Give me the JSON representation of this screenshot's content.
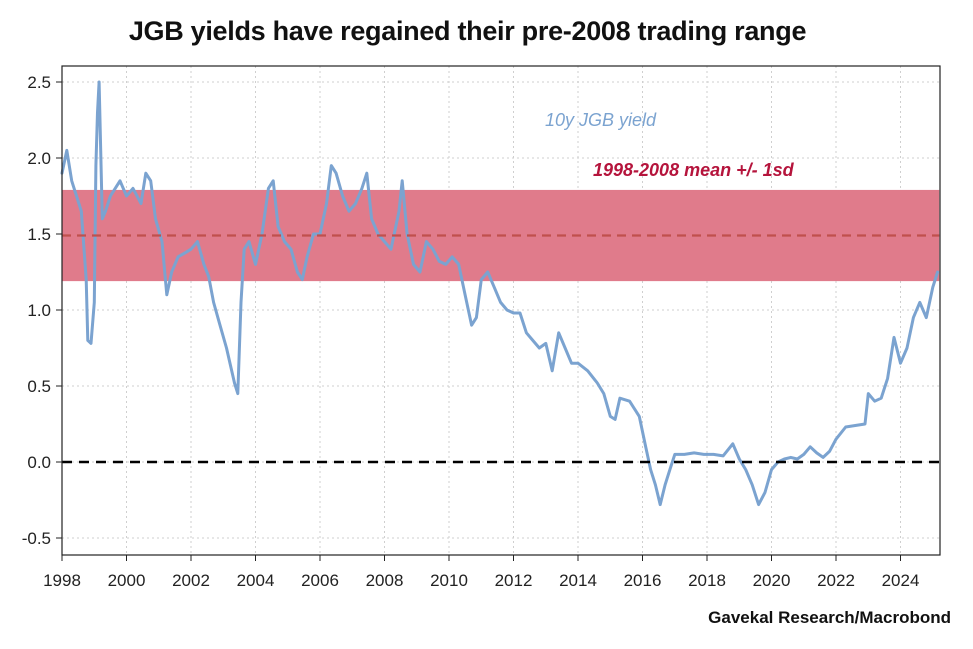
{
  "chart_data": {
    "type": "line",
    "title": "JGB yields have regained their pre-2008 trading range",
    "source": "Gavekal Research/Macrobond",
    "xlim": [
      1998,
      2025.4
    ],
    "ylim": [
      -0.6,
      2.6
    ],
    "x_ticks": [
      1998,
      2000,
      2002,
      2004,
      2006,
      2008,
      2010,
      2012,
      2014,
      2016,
      2018,
      2020,
      2022,
      2024
    ],
    "y_ticks": [
      -0.5,
      0.0,
      0.5,
      1.0,
      1.5,
      2.0,
      2.5
    ],
    "y_tick_labels": [
      "-0.5",
      "0.0",
      "0.5",
      "1.0",
      "1.5",
      "2.0",
      "2.5"
    ],
    "band": {
      "label": "1998-2008 mean +/- 1sd",
      "mean": 1.49,
      "low": 1.19,
      "high": 1.79,
      "x_start": 1998,
      "x_end": 2025.2,
      "color": "#e07b8b",
      "line_color": "#c0504d"
    },
    "zero_line": 0.0,
    "series": [
      {
        "name": "10y JGB yield",
        "color": "#7ba3d0",
        "points": [
          [
            1998.0,
            1.9
          ],
          [
            1998.15,
            2.05
          ],
          [
            1998.3,
            1.85
          ],
          [
            1998.45,
            1.75
          ],
          [
            1998.6,
            1.65
          ],
          [
            1998.75,
            1.2
          ],
          [
            1998.8,
            0.8
          ],
          [
            1998.9,
            0.78
          ],
          [
            1999.0,
            1.05
          ],
          [
            1999.05,
            1.95
          ],
          [
            1999.1,
            2.3
          ],
          [
            1999.15,
            2.5
          ],
          [
            1999.25,
            1.6
          ],
          [
            1999.35,
            1.65
          ],
          [
            1999.5,
            1.75
          ],
          [
            1999.65,
            1.8
          ],
          [
            1999.8,
            1.85
          ],
          [
            2000.0,
            1.75
          ],
          [
            2000.2,
            1.8
          ],
          [
            2000.45,
            1.7
          ],
          [
            2000.6,
            1.9
          ],
          [
            2000.75,
            1.85
          ],
          [
            2000.9,
            1.6
          ],
          [
            2001.1,
            1.45
          ],
          [
            2001.25,
            1.1
          ],
          [
            2001.4,
            1.25
          ],
          [
            2001.6,
            1.35
          ],
          [
            2001.85,
            1.38
          ],
          [
            2002.0,
            1.4
          ],
          [
            2002.2,
            1.45
          ],
          [
            2002.4,
            1.3
          ],
          [
            2002.55,
            1.22
          ],
          [
            2002.7,
            1.05
          ],
          [
            2002.9,
            0.9
          ],
          [
            2003.1,
            0.75
          ],
          [
            2003.35,
            0.52
          ],
          [
            2003.45,
            0.45
          ],
          [
            2003.55,
            1.05
          ],
          [
            2003.65,
            1.4
          ],
          [
            2003.8,
            1.45
          ],
          [
            2004.0,
            1.3
          ],
          [
            2004.2,
            1.5
          ],
          [
            2004.4,
            1.8
          ],
          [
            2004.55,
            1.85
          ],
          [
            2004.7,
            1.55
          ],
          [
            2004.9,
            1.45
          ],
          [
            2005.1,
            1.4
          ],
          [
            2005.3,
            1.25
          ],
          [
            2005.45,
            1.2
          ],
          [
            2005.6,
            1.35
          ],
          [
            2005.8,
            1.5
          ],
          [
            2006.0,
            1.5
          ],
          [
            2006.2,
            1.7
          ],
          [
            2006.35,
            1.95
          ],
          [
            2006.5,
            1.9
          ],
          [
            2006.7,
            1.75
          ],
          [
            2006.9,
            1.65
          ],
          [
            2007.1,
            1.7
          ],
          [
            2007.3,
            1.8
          ],
          [
            2007.45,
            1.9
          ],
          [
            2007.6,
            1.6
          ],
          [
            2007.8,
            1.5
          ],
          [
            2008.0,
            1.45
          ],
          [
            2008.2,
            1.4
          ],
          [
            2008.45,
            1.65
          ],
          [
            2008.55,
            1.85
          ],
          [
            2008.7,
            1.5
          ],
          [
            2008.9,
            1.3
          ],
          [
            2009.1,
            1.25
          ],
          [
            2009.3,
            1.45
          ],
          [
            2009.5,
            1.4
          ],
          [
            2009.7,
            1.32
          ],
          [
            2009.9,
            1.3
          ],
          [
            2010.1,
            1.35
          ],
          [
            2010.3,
            1.3
          ],
          [
            2010.5,
            1.1
          ],
          [
            2010.7,
            0.9
          ],
          [
            2010.85,
            0.95
          ],
          [
            2011.0,
            1.2
          ],
          [
            2011.2,
            1.25
          ],
          [
            2011.4,
            1.15
          ],
          [
            2011.6,
            1.05
          ],
          [
            2011.8,
            1.0
          ],
          [
            2012.0,
            0.98
          ],
          [
            2012.2,
            0.98
          ],
          [
            2012.4,
            0.85
          ],
          [
            2012.6,
            0.8
          ],
          [
            2012.8,
            0.75
          ],
          [
            2013.0,
            0.78
          ],
          [
            2013.2,
            0.6
          ],
          [
            2013.4,
            0.85
          ],
          [
            2013.6,
            0.75
          ],
          [
            2013.8,
            0.65
          ],
          [
            2014.0,
            0.65
          ],
          [
            2014.3,
            0.6
          ],
          [
            2014.6,
            0.52
          ],
          [
            2014.8,
            0.45
          ],
          [
            2015.0,
            0.3
          ],
          [
            2015.15,
            0.28
          ],
          [
            2015.3,
            0.42
          ],
          [
            2015.6,
            0.4
          ],
          [
            2015.9,
            0.3
          ],
          [
            2016.1,
            0.1
          ],
          [
            2016.25,
            -0.05
          ],
          [
            2016.4,
            -0.15
          ],
          [
            2016.55,
            -0.28
          ],
          [
            2016.7,
            -0.15
          ],
          [
            2016.85,
            -0.05
          ],
          [
            2017.0,
            0.05
          ],
          [
            2017.3,
            0.05
          ],
          [
            2017.6,
            0.06
          ],
          [
            2017.9,
            0.05
          ],
          [
            2018.2,
            0.05
          ],
          [
            2018.5,
            0.04
          ],
          [
            2018.8,
            0.12
          ],
          [
            2019.0,
            0.02
          ],
          [
            2019.2,
            -0.05
          ],
          [
            2019.4,
            -0.15
          ],
          [
            2019.6,
            -0.28
          ],
          [
            2019.8,
            -0.2
          ],
          [
            2020.0,
            -0.05
          ],
          [
            2020.2,
            0.0
          ],
          [
            2020.4,
            0.02
          ],
          [
            2020.6,
            0.03
          ],
          [
            2020.8,
            0.02
          ],
          [
            2021.0,
            0.05
          ],
          [
            2021.2,
            0.1
          ],
          [
            2021.4,
            0.06
          ],
          [
            2021.6,
            0.03
          ],
          [
            2021.8,
            0.07
          ],
          [
            2022.0,
            0.15
          ],
          [
            2022.3,
            0.23
          ],
          [
            2022.6,
            0.24
          ],
          [
            2022.9,
            0.25
          ],
          [
            2023.0,
            0.45
          ],
          [
            2023.2,
            0.4
          ],
          [
            2023.4,
            0.42
          ],
          [
            2023.6,
            0.55
          ],
          [
            2023.8,
            0.82
          ],
          [
            2024.0,
            0.65
          ],
          [
            2024.2,
            0.75
          ],
          [
            2024.4,
            0.95
          ],
          [
            2024.6,
            1.05
          ],
          [
            2024.8,
            0.95
          ],
          [
            2025.0,
            1.15
          ],
          [
            2025.15,
            1.25
          ]
        ]
      }
    ]
  }
}
